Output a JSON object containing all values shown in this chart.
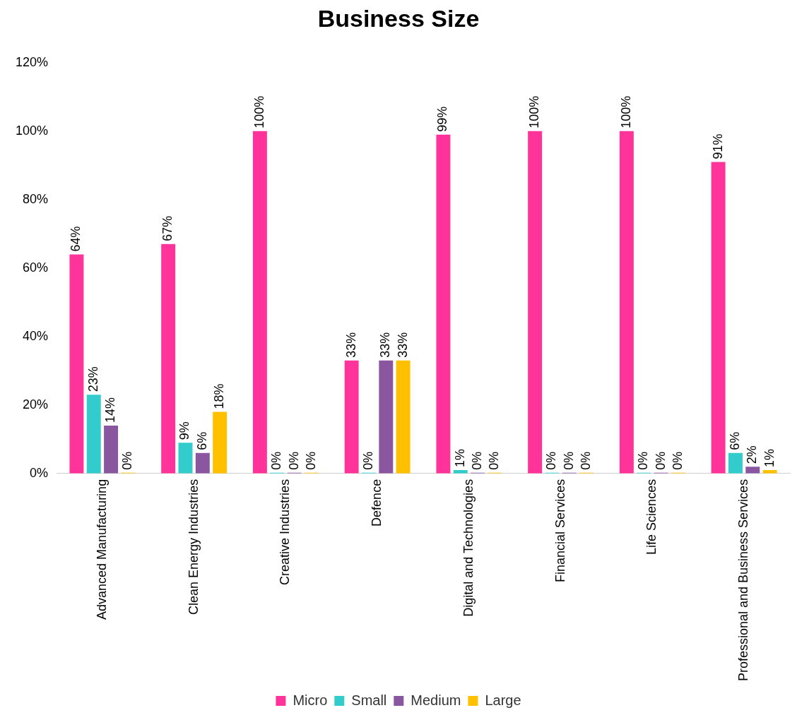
{
  "chart_data": {
    "type": "bar",
    "title": "Business Size",
    "categories": [
      "Advanced Manufacturing",
      "Clean Energy Industries",
      "Creative Industries",
      "Defence",
      "Digital and Technologies",
      "Financial Services",
      "Life Sciences",
      "Professional and Business Services"
    ],
    "series": [
      {
        "name": "Micro",
        "color": "#ff3399",
        "values": [
          64,
          67,
          100,
          33,
          99,
          100,
          100,
          91
        ],
        "value_labels": [
          "64%",
          "67%",
          "100%",
          "33%",
          "99%",
          "100%",
          "100%",
          "91%"
        ]
      },
      {
        "name": "Small",
        "color": "#33cccc",
        "values": [
          23,
          9,
          0,
          0,
          1,
          0,
          0,
          6
        ],
        "value_labels": [
          "23%",
          "9%",
          "0%",
          "0%",
          "1%",
          "0%",
          "0%",
          "6%"
        ]
      },
      {
        "name": "Medium",
        "color": "#8a56a0",
        "values": [
          14,
          6,
          0,
          33,
          0,
          0,
          0,
          2
        ],
        "value_labels": [
          "14%",
          "6%",
          "0%",
          "33%",
          "0%",
          "0%",
          "0%",
          "2%"
        ]
      },
      {
        "name": "Large",
        "color": "#ffc000",
        "values": [
          0,
          18,
          0,
          33,
          0,
          0,
          0,
          1
        ],
        "value_labels": [
          "0%",
          "18%",
          "0%",
          "33%",
          "0%",
          "0%",
          "0%",
          "1%"
        ]
      }
    ],
    "ylim": [
      0,
      120
    ],
    "yticks": [
      {
        "value": 0,
        "label": "0%"
      },
      {
        "value": 20,
        "label": "20%"
      },
      {
        "value": 40,
        "label": "40%"
      },
      {
        "value": 60,
        "label": "60%"
      },
      {
        "value": 80,
        "label": "80%"
      },
      {
        "value": 100,
        "label": "100%"
      },
      {
        "value": 120,
        "label": "120%"
      }
    ],
    "grid": false,
    "legend": "bottom"
  }
}
